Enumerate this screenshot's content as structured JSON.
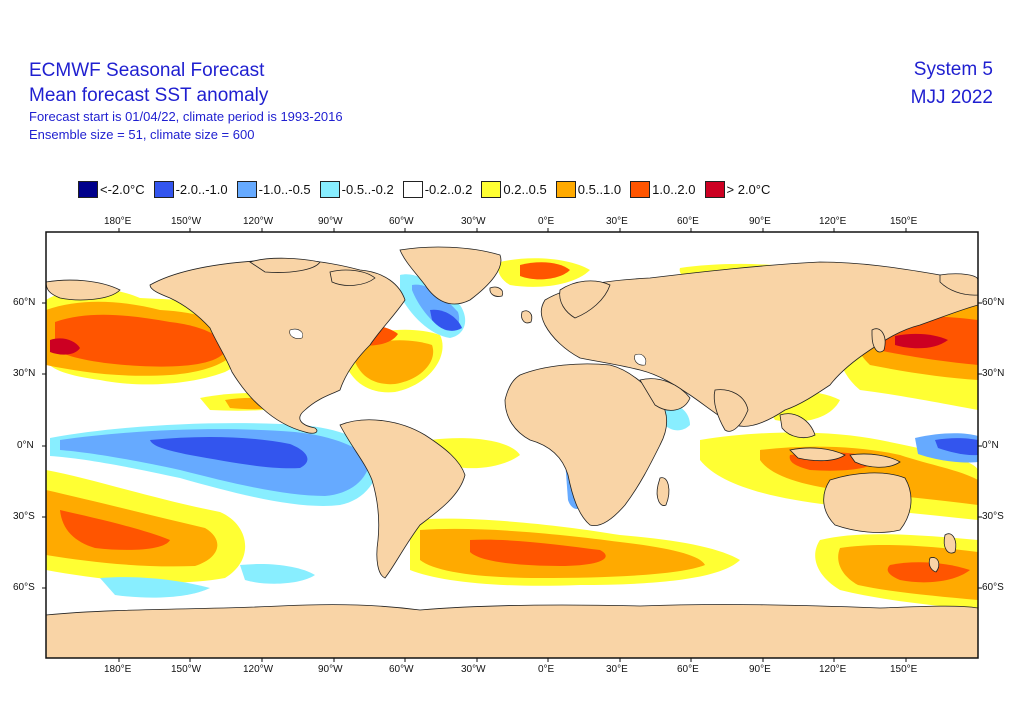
{
  "header": {
    "title": "ECMWF Seasonal Forecast",
    "subtitle": "Mean forecast SST anomaly",
    "forecast_info": "Forecast start is 01/04/22, climate period is 1993-2016",
    "ensemble_info": "Ensemble size = 51, climate size = 600",
    "system": "System 5",
    "period": "MJJ 2022"
  },
  "legend": {
    "items": [
      {
        "label": "<-2.0°C",
        "color": "#00008b"
      },
      {
        "label": "-2.0..-1.0",
        "color": "#3355ee"
      },
      {
        "label": "-1.0..-0.5",
        "color": "#66aaff"
      },
      {
        "label": "-0.5..-0.2",
        "color": "#88eeff"
      },
      {
        "label": "-0.2..0.2",
        "color": "#ffffff"
      },
      {
        "label": "0.2..0.5",
        "color": "#ffff33"
      },
      {
        "label": "0.5..1.0",
        "color": "#ffaa00"
      },
      {
        "label": "1.0..2.0",
        "color": "#ff5500"
      },
      {
        "label": "> 2.0°C",
        "color": "#cc0022"
      }
    ]
  },
  "axes": {
    "lon_labels": [
      "180°E",
      "150°W",
      "120°W",
      "90°W",
      "60°W",
      "30°W",
      "0°E",
      "30°E",
      "60°E",
      "90°E",
      "120°E",
      "150°E"
    ],
    "lat_labels": [
      "60°N",
      "30°N",
      "0°N",
      "30°S",
      "60°S"
    ]
  },
  "colors": {
    "land": "#f9d4a6",
    "ocean": "#ffffff",
    "frame": "#111111"
  }
}
